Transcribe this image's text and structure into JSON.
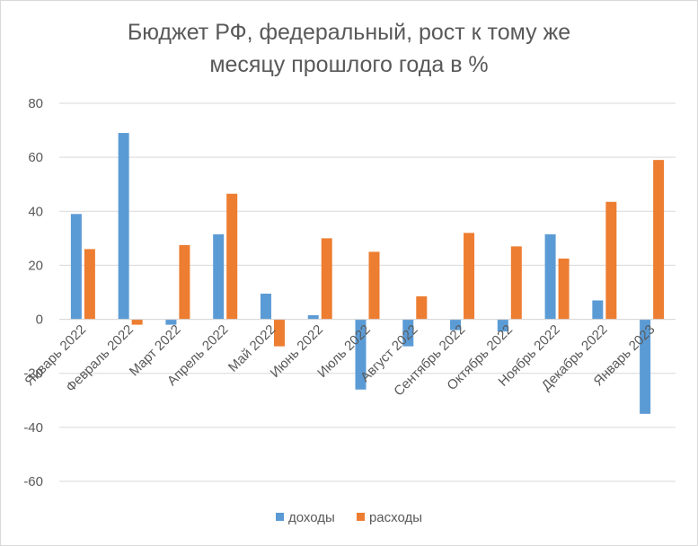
{
  "chart_data": {
    "type": "bar",
    "title_lines": [
      "Бюджет РФ, федеральный, рост к тому же",
      "месяцу прошлого года в %"
    ],
    "categories": [
      "Январь 2022",
      "Февраль 2022",
      "Март 2022",
      "Апрель 2022",
      "Май 2022",
      "Июнь 2022",
      "Июль 2022",
      "Август 2022",
      "Сентябрь 2022",
      "Октябрь 2022",
      "Ноябрь 2022",
      "Декабрь 2022",
      "Январь 2023"
    ],
    "series": [
      {
        "name": "доходы",
        "color": "#5b9bd5",
        "values": [
          39,
          69,
          -2,
          31.5,
          9.5,
          1.5,
          -26,
          -10,
          -4,
          -4.5,
          31.5,
          7,
          -35
        ]
      },
      {
        "name": "расходы",
        "color": "#ed7d31",
        "values": [
          26,
          -2,
          27.5,
          46.5,
          -10,
          30,
          25,
          8.5,
          32,
          27,
          22.5,
          43.5,
          59
        ]
      }
    ],
    "ylim": [
      -60,
      80
    ],
    "yticks": [
      "80",
      "60",
      "40",
      "20",
      "0",
      "-20",
      "-40",
      "-60"
    ],
    "grid": true,
    "legend_position": "bottom"
  }
}
